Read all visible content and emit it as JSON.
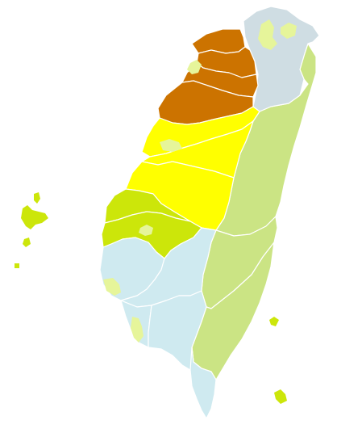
{
  "map": {
    "kind": "choropleth",
    "palette": {
      "dark_orange": "#cc7300",
      "yellow": "#ffff00",
      "lime": "#cce60a",
      "light_green": "#cbe484",
      "light_blue": "#cfeaf0",
      "grey_blue": "#cfdde3",
      "pale_yellow": "#e6f59a"
    },
    "regions": [
      {
        "id": "northeast-tip",
        "color_key": "grey_blue"
      },
      {
        "id": "northwest-orange-1",
        "color_key": "dark_orange"
      },
      {
        "id": "northwest-orange-2",
        "color_key": "dark_orange"
      },
      {
        "id": "northwest-orange-3",
        "color_key": "dark_orange"
      },
      {
        "id": "northwest-orange-4",
        "color_key": "dark_orange"
      },
      {
        "id": "central-yellow-north",
        "color_key": "yellow"
      },
      {
        "id": "central-yellow-east",
        "color_key": "yellow"
      },
      {
        "id": "central-yellow-south",
        "color_key": "yellow"
      },
      {
        "id": "central-lime-north",
        "color_key": "lime"
      },
      {
        "id": "central-lime-south",
        "color_key": "lime"
      },
      {
        "id": "east-green-north",
        "color_key": "light_green"
      },
      {
        "id": "east-green-mid",
        "color_key": "light_green"
      },
      {
        "id": "east-green-south",
        "color_key": "light_green"
      },
      {
        "id": "southwest-blue-1",
        "color_key": "light_blue"
      },
      {
        "id": "southwest-blue-2",
        "color_key": "light_blue"
      },
      {
        "id": "southwest-blue-3",
        "color_key": "light_blue"
      },
      {
        "id": "southwest-blue-4",
        "color_key": "light_blue"
      },
      {
        "id": "southern-tip-blue",
        "color_key": "light_blue"
      }
    ],
    "islands": [
      {
        "id": "penghu-islands",
        "color_key": "lime"
      },
      {
        "id": "green-island",
        "color_key": "lime"
      },
      {
        "id": "orchid-island",
        "color_key": "lime"
      }
    ],
    "enclaves": [
      {
        "id": "taipei-city",
        "color_key": "pale_yellow"
      },
      {
        "id": "keelung-city",
        "color_key": "pale_yellow"
      },
      {
        "id": "hsinchu-city",
        "color_key": "pale_yellow"
      },
      {
        "id": "taichung-city",
        "color_key": "pale_yellow"
      },
      {
        "id": "chiayi-city",
        "color_key": "pale_yellow"
      },
      {
        "id": "tainan-city",
        "color_key": "pale_yellow"
      },
      {
        "id": "kaohsiung-city",
        "color_key": "pale_yellow"
      }
    ]
  }
}
